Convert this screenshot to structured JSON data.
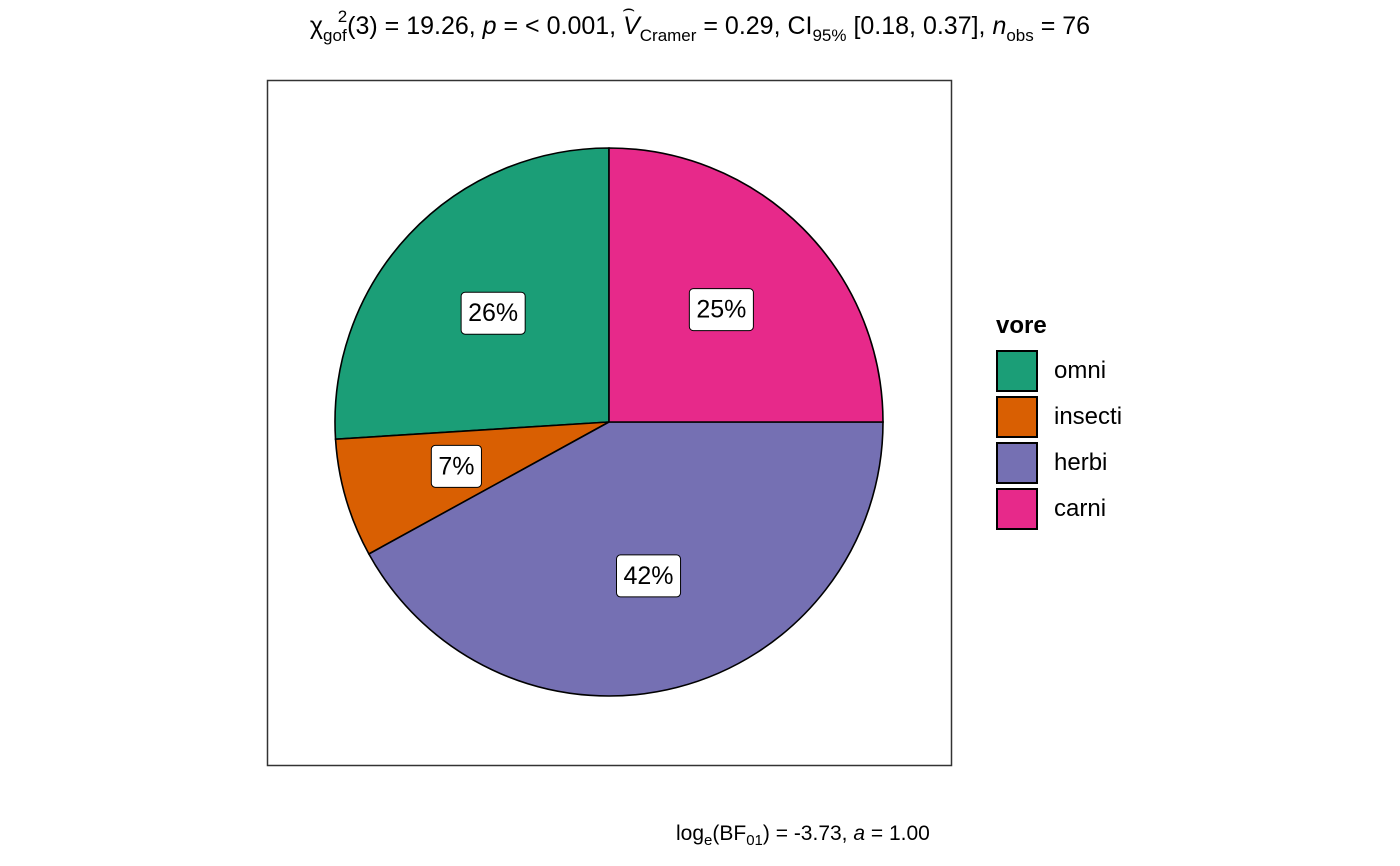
{
  "chart_data": {
    "type": "pie",
    "subtitle_parts": {
      "chi_sub": "gof",
      "chi_sup": "2",
      "df_stat": "(3) = 19.26, ",
      "p_label": "p",
      "p_value": " = < 0.001, ",
      "v_label": "V",
      "v_sub": "Cramer",
      "v_value": " = 0.29, CI",
      "ci_sub": "95%",
      "ci_value": " [0.18, 0.37], ",
      "n_label": "n",
      "n_sub": "obs",
      "n_value": " = 76"
    },
    "caption_parts": {
      "log": "log",
      "log_sub": "e",
      "bf": "(BF",
      "bf_sub": "01",
      "rest": ") = -3.73, ",
      "a_label": "a",
      "a_value": " = 1.00"
    },
    "legend_title": "vore",
    "legend_position": "right",
    "slices": [
      {
        "category": "omni",
        "percent": 26,
        "label": "26%",
        "color": "#1B9E77"
      },
      {
        "category": "insecti",
        "percent": 7,
        "label": "7%",
        "color": "#D95F02"
      },
      {
        "category": "herbi",
        "percent": 42,
        "label": "42%",
        "color": "#7570B3"
      },
      {
        "category": "carni",
        "percent": 25,
        "label": "25%",
        "color": "#E7298A"
      }
    ]
  }
}
